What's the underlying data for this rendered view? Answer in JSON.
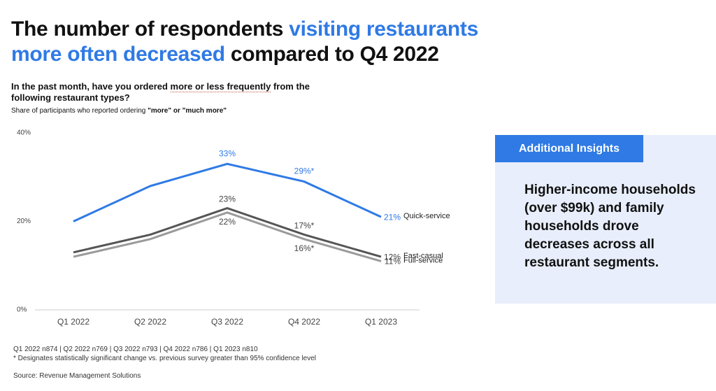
{
  "title_parts": [
    "The number of respondents",
    "visiting restaurants",
    "more often decreased",
    "compared to Q4 2022"
  ],
  "question_parts": [
    "In the past month, have you ordered",
    "more or less frequently",
    "from the following restaurant types?"
  ],
  "subtitle_parts": [
    "Share of participants who reported ordering",
    "\"more\" or \"much more\""
  ],
  "chart_data": {
    "type": "line",
    "categories": [
      "Q1 2022",
      "Q2 2022",
      "Q3 2022",
      "Q4 2022",
      "Q1 2023"
    ],
    "ylim": [
      0,
      40
    ],
    "yticks": [
      {
        "value": 0,
        "label": "0%"
      },
      {
        "value": 20,
        "label": "20%"
      },
      {
        "value": 40,
        "label": "40%"
      }
    ],
    "series": [
      {
        "name": "Quick-service",
        "color": "#2f7ae5",
        "values": [
          20,
          28,
          33,
          29,
          21
        ],
        "value_labels": [
          null,
          null,
          "33%",
          "29%*",
          "21%"
        ]
      },
      {
        "name": "Fast-casual",
        "color": "#555555",
        "values": [
          13,
          17,
          23,
          17,
          12
        ],
        "value_labels": [
          null,
          null,
          "23%",
          "17%*",
          "12%"
        ]
      },
      {
        "name": "Full-service",
        "color": "#9a9a9a",
        "values": [
          12,
          16,
          22,
          16,
          11
        ],
        "value_labels": [
          null,
          null,
          "22%",
          "16%*",
          "11%"
        ]
      }
    ]
  },
  "notes": [
    "Q1 2022 n874 | Q2 2022 n769 | Q3 2022 n793 | Q4 2022 n786 | Q1 2023 n810",
    "* Designates statistically significant change vs. previous survey greater than 95% confidence level"
  ],
  "source": "Source: Revenue Management Solutions",
  "insights": {
    "header": "Additional Insights",
    "body": "Higher-income households (over $99k) and family households drove decreases across all restaurant segments."
  }
}
